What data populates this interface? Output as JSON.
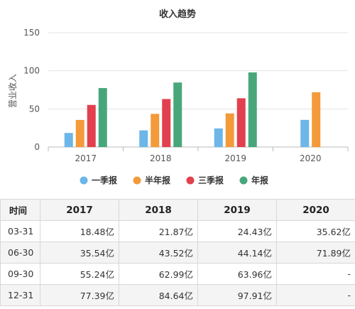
{
  "chart_data": {
    "type": "bar",
    "title": "收入趋势",
    "ylabel": "营业收入",
    "xlabel": "",
    "categories": [
      "2017",
      "2018",
      "2019",
      "2020"
    ],
    "ylim": [
      0,
      150
    ],
    "yticks": [
      0,
      50,
      100,
      150
    ],
    "grid": true,
    "legend_position": "bottom",
    "series": [
      {
        "name": "一季报",
        "color": "#6cb6e8",
        "values": [
          18.48,
          21.87,
          24.43,
          35.62
        ]
      },
      {
        "name": "半年报",
        "color": "#f39a3a",
        "values": [
          35.54,
          43.52,
          44.14,
          71.89
        ]
      },
      {
        "name": "三季报",
        "color": "#e2404e",
        "values": [
          55.24,
          62.99,
          63.96,
          null
        ]
      },
      {
        "name": "年报",
        "color": "#47a77b",
        "values": [
          77.39,
          84.64,
          97.91,
          null
        ]
      }
    ]
  },
  "table": {
    "headers": [
      "时间",
      "2017",
      "2018",
      "2019",
      "2020"
    ],
    "rows": [
      [
        "03-31",
        "18.48亿",
        "21.87亿",
        "24.43亿",
        "35.62亿"
      ],
      [
        "06-30",
        "35.54亿",
        "43.52亿",
        "44.14亿",
        "71.89亿"
      ],
      [
        "09-30",
        "55.24亿",
        "62.99亿",
        "63.96亿",
        "-"
      ],
      [
        "12-31",
        "77.39亿",
        "84.64亿",
        "97.91亿",
        "-"
      ]
    ]
  }
}
